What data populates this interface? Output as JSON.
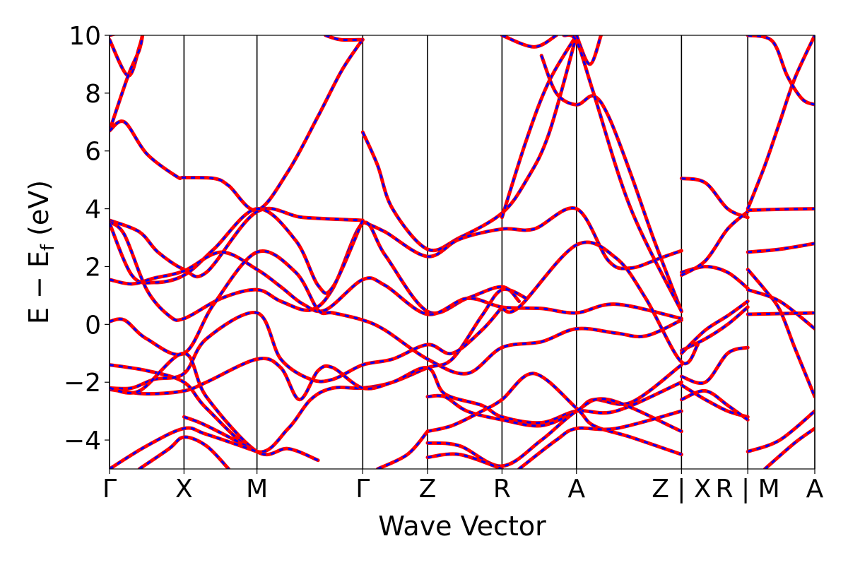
{
  "chart_data": {
    "type": "line",
    "xlabel": "Wave Vector",
    "ylabel_main": "E − E",
    "ylabel_sub": "f",
    "ylabel_unit": " (eV)",
    "ylim": [
      -5,
      10
    ],
    "yticks": [
      -4,
      -2,
      0,
      2,
      4,
      6,
      8,
      10
    ],
    "ytick_labels": [
      "−4",
      "−2",
      "0",
      "2",
      "4",
      "6",
      "8",
      "10"
    ],
    "path_range": [
      0,
      9.47
    ],
    "high_symmetry_points": [
      {
        "pos": 0.0,
        "label": "Γ"
      },
      {
        "pos": 1.0,
        "label": "X"
      },
      {
        "pos": 1.98,
        "label": "M"
      },
      {
        "pos": 3.4,
        "label": "Γ"
      },
      {
        "pos": 4.27,
        "label": "Z"
      },
      {
        "pos": 5.27,
        "label": "R"
      },
      {
        "pos": 6.27,
        "label": "A"
      },
      {
        "pos": 7.68,
        "label": "Z | X"
      },
      {
        "pos": 8.57,
        "label": "R | M"
      },
      {
        "pos": 9.47,
        "label": "A"
      }
    ],
    "series_styles": {
      "reference": {
        "color": "#ff0000",
        "width": 5
      },
      "overlay": {
        "color": "#0000ff",
        "width": 3,
        "dash": "6,7"
      }
    },
    "bands": [
      [
        [
          0.0,
          9.85
        ],
        [
          0.25,
          8.6
        ],
        [
          0.4,
          9.6
        ],
        [
          0.45,
          10.1
        ]
      ],
      [
        [
          0.0,
          6.7
        ],
        [
          0.25,
          8.6
        ],
        [
          0.4,
          9.5
        ],
        [
          0.45,
          10.1
        ]
      ],
      [
        [
          0.0,
          10.0
        ],
        [
          0.3,
          10.2
        ]
      ],
      [
        [
          0.0,
          6.7
        ],
        [
          0.2,
          7.0
        ],
        [
          0.5,
          5.9
        ],
        [
          0.9,
          5.12
        ],
        [
          1.0,
          5.08
        ],
        [
          1.4,
          5.05
        ],
        [
          1.6,
          4.8
        ],
        [
          1.98,
          3.95
        ],
        [
          2.4,
          5.3
        ],
        [
          2.8,
          7.2
        ],
        [
          3.1,
          8.7
        ],
        [
          3.3,
          9.5
        ],
        [
          3.4,
          9.85
        ]
      ],
      [
        [
          2.9,
          10.0
        ],
        [
          3.1,
          9.85
        ],
        [
          3.4,
          9.85
        ]
      ],
      [
        [
          3.4,
          6.65
        ],
        [
          3.6,
          5.5
        ],
        [
          3.8,
          4.0
        ],
        [
          4.27,
          2.6
        ],
        [
          4.7,
          3.0
        ],
        [
          5.27,
          3.85
        ],
        [
          5.6,
          5.0
        ],
        [
          5.9,
          6.6
        ],
        [
          6.27,
          10.0
        ]
      ],
      [
        [
          3.4,
          3.55
        ],
        [
          3.7,
          3.2
        ],
        [
          4.27,
          2.35
        ],
        [
          4.7,
          2.95
        ],
        [
          5.27,
          3.3
        ],
        [
          5.7,
          3.3
        ],
        [
          6.27,
          4.0
        ],
        [
          6.7,
          2.2
        ],
        [
          7.0,
          1.95
        ],
        [
          7.4,
          2.3
        ],
        [
          7.68,
          2.55
        ]
      ],
      [
        [
          5.27,
          3.7
        ],
        [
          5.6,
          6.4
        ],
        [
          5.9,
          8.4
        ],
        [
          6.27,
          10.0
        ]
      ],
      [
        [
          5.27,
          10.0
        ],
        [
          5.7,
          9.6
        ],
        [
          6.0,
          10.0
        ]
      ],
      [
        [
          6.27,
          10.0
        ],
        [
          6.45,
          9.0
        ],
        [
          6.6,
          10.0
        ]
      ],
      [
        [
          5.8,
          9.3
        ],
        [
          6.0,
          8.0
        ],
        [
          6.27,
          7.6
        ],
        [
          6.5,
          7.9
        ],
        [
          6.7,
          7.2
        ],
        [
          7.0,
          5.2
        ],
        [
          7.3,
          3.0
        ],
        [
          7.68,
          0.45
        ]
      ],
      [
        [
          6.1,
          10.0
        ],
        [
          6.27,
          9.8
        ],
        [
          6.5,
          8.0
        ],
        [
          7.0,
          4.0
        ],
        [
          7.68,
          0.45
        ]
      ],
      [
        [
          0.0,
          3.6
        ],
        [
          0.4,
          3.2
        ],
        [
          0.65,
          2.5
        ],
        [
          1.0,
          1.9
        ],
        [
          1.3,
          1.8
        ],
        [
          1.98,
          3.9
        ],
        [
          2.6,
          3.7
        ],
        [
          3.4,
          3.6
        ]
      ],
      [
        [
          0.0,
          3.55
        ],
        [
          0.2,
          3.1
        ],
        [
          0.5,
          1.2
        ],
        [
          0.8,
          0.3
        ],
        [
          1.0,
          0.2
        ],
        [
          1.5,
          0.9
        ],
        [
          1.98,
          1.2
        ],
        [
          2.3,
          0.8
        ],
        [
          2.7,
          0.5
        ],
        [
          3.0,
          1.25
        ],
        [
          3.4,
          3.5
        ],
        [
          3.7,
          2.4
        ],
        [
          4.27,
          0.45
        ],
        [
          4.8,
          0.9
        ],
        [
          5.27,
          1.3
        ],
        [
          5.5,
          0.8
        ]
      ],
      [
        [
          0.0,
          3.5
        ],
        [
          0.3,
          1.7
        ],
        [
          0.6,
          1.45
        ],
        [
          1.0,
          1.7
        ],
        [
          1.4,
          2.6
        ],
        [
          1.98,
          4.0
        ],
        [
          2.5,
          2.9
        ],
        [
          2.8,
          1.35
        ],
        [
          3.0,
          1.3
        ],
        [
          3.4,
          3.6
        ]
      ],
      [
        [
          0.0,
          1.55
        ],
        [
          0.3,
          1.4
        ],
        [
          0.6,
          1.6
        ],
        [
          1.0,
          1.85
        ],
        [
          1.5,
          2.5
        ],
        [
          1.98,
          1.9
        ],
        [
          2.3,
          1.3
        ],
        [
          2.6,
          0.7
        ],
        [
          2.9,
          0.5
        ],
        [
          3.4,
          1.55
        ],
        [
          3.7,
          1.35
        ],
        [
          4.27,
          0.35
        ],
        [
          4.8,
          0.9
        ],
        [
          5.27,
          0.6
        ],
        [
          5.8,
          0.55
        ],
        [
          6.27,
          0.4
        ],
        [
          6.8,
          0.7
        ],
        [
          7.68,
          0.2
        ]
      ],
      [
        [
          0.0,
          0.1
        ],
        [
          0.2,
          0.15
        ],
        [
          0.5,
          -0.5
        ],
        [
          1.0,
          -1.0
        ],
        [
          1.4,
          0.7
        ],
        [
          1.98,
          2.5
        ],
        [
          2.5,
          1.8
        ],
        [
          2.8,
          0.5
        ],
        [
          3.0,
          0.4
        ],
        [
          3.4,
          0.15
        ],
        [
          3.7,
          -0.2
        ],
        [
          4.27,
          -1.2
        ],
        [
          4.8,
          -1.7
        ],
        [
          5.27,
          -0.8
        ],
        [
          5.8,
          -0.6
        ],
        [
          6.27,
          -0.15
        ],
        [
          6.8,
          -0.3
        ],
        [
          7.2,
          -0.4
        ],
        [
          7.68,
          0.15
        ]
      ],
      [
        [
          5.27,
          0.55
        ],
        [
          5.5,
          0.6
        ],
        [
          6.27,
          2.75
        ],
        [
          6.8,
          2.3
        ],
        [
          7.2,
          0.9
        ],
        [
          7.68,
          -1.3
        ],
        [
          7.9,
          -0.7
        ]
      ],
      [
        [
          0.0,
          -1.4
        ],
        [
          0.5,
          -1.6
        ],
        [
          1.0,
          -2.0
        ],
        [
          1.3,
          -2.9
        ],
        [
          1.98,
          -4.4
        ],
        [
          2.4,
          -3.6
        ],
        [
          2.7,
          -2.6
        ],
        [
          3.0,
          -2.2
        ],
        [
          3.4,
          -2.2
        ],
        [
          3.8,
          -2.0
        ],
        [
          4.27,
          -1.5
        ],
        [
          4.6,
          -1.2
        ],
        [
          5.0,
          0.3
        ],
        [
          5.27,
          1.2
        ],
        [
          5.6,
          0.9
        ]
      ],
      [
        [
          0.0,
          -2.2
        ],
        [
          0.3,
          -2.2
        ],
        [
          0.6,
          -1.9
        ],
        [
          1.0,
          -1.7
        ],
        [
          1.3,
          -0.5
        ],
        [
          1.98,
          0.4
        ],
        [
          2.3,
          -1.2
        ],
        [
          2.7,
          -1.9
        ],
        [
          3.0,
          -1.9
        ],
        [
          3.4,
          -1.4
        ],
        [
          3.8,
          -1.2
        ],
        [
          4.27,
          -0.7
        ],
        [
          4.6,
          -1.0
        ],
        [
          5.0,
          -0.2
        ],
        [
          5.27,
          0.6
        ]
      ],
      [
        [
          0.0,
          -2.25
        ],
        [
          0.5,
          -2.4
        ],
        [
          1.0,
          -2.3
        ],
        [
          1.3,
          -2.0
        ],
        [
          1.98,
          -1.2
        ],
        [
          2.3,
          -1.5
        ],
        [
          2.55,
          -2.6
        ],
        [
          2.8,
          -1.6
        ],
        [
          3.0,
          -1.5
        ],
        [
          3.4,
          -2.2
        ],
        [
          3.8,
          -2.0
        ],
        [
          4.27,
          -1.5
        ],
        [
          4.5,
          -2.4
        ],
        [
          5.0,
          -2.8
        ],
        [
          5.27,
          -3.2
        ],
        [
          5.8,
          -3.4
        ],
        [
          6.27,
          -3.0
        ],
        [
          6.8,
          -3.0
        ],
        [
          7.68,
          -2.0
        ]
      ],
      [
        [
          0.0,
          -2.2
        ],
        [
          0.4,
          -2.3
        ],
        [
          1.0,
          -1.0
        ],
        [
          1.3,
          -2.5
        ],
        [
          1.98,
          -4.4
        ],
        [
          2.4,
          -4.3
        ],
        [
          2.8,
          -4.7
        ]
      ],
      [
        [
          1.0,
          -3.2
        ],
        [
          1.3,
          -3.5
        ],
        [
          1.98,
          -4.4
        ]
      ],
      [
        [
          0.0,
          -5.0
        ],
        [
          0.5,
          -4.2
        ],
        [
          1.0,
          -3.6
        ],
        [
          1.3,
          -3.8
        ],
        [
          1.98,
          -4.4
        ]
      ],
      [
        [
          0.4,
          -5.0
        ],
        [
          0.8,
          -4.3
        ],
        [
          1.0,
          -3.9
        ],
        [
          1.3,
          -4.2
        ],
        [
          1.6,
          -5.0
        ]
      ],
      [
        [
          4.27,
          -2.5
        ],
        [
          4.5,
          -2.5
        ],
        [
          4.8,
          -3.0
        ],
        [
          5.27,
          -3.3
        ],
        [
          5.8,
          -3.5
        ],
        [
          6.27,
          -3.0
        ],
        [
          6.5,
          -2.6
        ],
        [
          7.0,
          -2.7
        ],
        [
          7.68,
          -1.4
        ]
      ],
      [
        [
          4.27,
          -3.7
        ],
        [
          4.6,
          -3.5
        ],
        [
          5.0,
          -3.0
        ],
        [
          5.27,
          -2.6
        ],
        [
          5.7,
          -1.7
        ],
        [
          6.27,
          -2.9
        ],
        [
          6.5,
          -3.5
        ],
        [
          7.0,
          -3.9
        ],
        [
          7.68,
          -4.5
        ]
      ],
      [
        [
          4.27,
          -4.1
        ],
        [
          4.7,
          -4.2
        ],
        [
          5.27,
          -4.9
        ],
        [
          5.8,
          -4.0
        ],
        [
          6.27,
          -3.0
        ],
        [
          6.7,
          -2.6
        ],
        [
          7.68,
          -3.7
        ]
      ],
      [
        [
          4.27,
          -4.6
        ],
        [
          4.7,
          -4.5
        ],
        [
          5.27,
          -5.0
        ]
      ],
      [
        [
          3.6,
          -5.0
        ],
        [
          4.0,
          -4.5
        ],
        [
          4.27,
          -3.7
        ]
      ],
      [
        [
          5.5,
          -5.0
        ],
        [
          6.0,
          -4.0
        ],
        [
          6.27,
          -3.6
        ],
        [
          6.8,
          -3.6
        ],
        [
          7.68,
          -3.0
        ]
      ],
      [
        [
          7.68,
          5.05
        ],
        [
          8.0,
          4.9
        ],
        [
          8.3,
          4.0
        ],
        [
          8.57,
          3.7
        ]
      ],
      [
        [
          7.68,
          1.8
        ],
        [
          8.0,
          2.0
        ],
        [
          8.3,
          1.8
        ],
        [
          8.57,
          1.25
        ]
      ],
      [
        [
          7.68,
          1.7
        ],
        [
          8.0,
          2.2
        ],
        [
          8.3,
          3.3
        ],
        [
          8.57,
          3.9
        ]
      ],
      [
        [
          7.68,
          -0.9
        ],
        [
          8.0,
          -0.5
        ],
        [
          8.3,
          0.0
        ],
        [
          8.57,
          0.6
        ]
      ],
      [
        [
          7.68,
          -1.0
        ],
        [
          8.0,
          -0.2
        ],
        [
          8.3,
          0.3
        ],
        [
          8.57,
          0.8
        ]
      ],
      [
        [
          7.68,
          -1.8
        ],
        [
          8.0,
          -2.0
        ],
        [
          8.3,
          -1.0
        ],
        [
          8.57,
          -0.8
        ]
      ],
      [
        [
          7.68,
          -2.1
        ],
        [
          8.0,
          -2.6
        ],
        [
          8.3,
          -3.0
        ],
        [
          8.57,
          -3.2
        ]
      ],
      [
        [
          7.68,
          -2.6
        ],
        [
          8.0,
          -2.3
        ],
        [
          8.3,
          -2.8
        ],
        [
          8.57,
          -3.3
        ]
      ],
      [
        [
          8.57,
          3.95
        ],
        [
          9.0,
          3.98
        ],
        [
          9.47,
          4.0
        ]
      ],
      [
        [
          8.57,
          4.0
        ],
        [
          8.8,
          5.5
        ],
        [
          9.0,
          7.0
        ],
        [
          9.2,
          8.5
        ],
        [
          9.47,
          10.0
        ]
      ],
      [
        [
          8.57,
          10.0
        ],
        [
          8.9,
          9.8
        ],
        [
          9.1,
          8.6
        ],
        [
          9.3,
          7.8
        ],
        [
          9.47,
          7.6
        ]
      ],
      [
        [
          8.57,
          2.5
        ],
        [
          9.0,
          2.6
        ],
        [
          9.47,
          2.8
        ]
      ],
      [
        [
          8.57,
          1.9
        ],
        [
          8.8,
          1.2
        ],
        [
          9.0,
          0.5
        ],
        [
          9.2,
          -0.8
        ],
        [
          9.47,
          -2.5
        ]
      ],
      [
        [
          8.57,
          1.2
        ],
        [
          9.0,
          0.8
        ],
        [
          9.47,
          -0.15
        ]
      ],
      [
        [
          8.57,
          0.35
        ],
        [
          9.47,
          0.4
        ]
      ],
      [
        [
          8.57,
          -4.4
        ],
        [
          9.0,
          -4.0
        ],
        [
          9.47,
          -3.0
        ]
      ],
      [
        [
          8.8,
          -5.0
        ],
        [
          9.2,
          -4.1
        ],
        [
          9.47,
          -3.6
        ]
      ]
    ]
  }
}
